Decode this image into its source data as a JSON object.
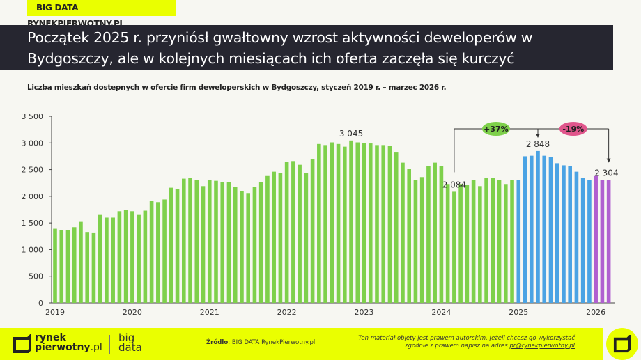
{
  "header": {
    "tag": "BIG DATA RYNEKPIERWOTNY.PL",
    "title_line1": "Początek 2025 r. przyniósł gwałtowny wzrost aktywności deweloperów w",
    "title_line2": "Bydgoszczy, ale w kolejnych miesiącach ich oferta zaczęła się kurczyć"
  },
  "chart_data": {
    "type": "bar",
    "title": "Liczba mieszkań dostępnych w ofercie firm deweloperskich w Bydgoszczy, styczeń 2019 r. – marzec 2026 r.",
    "xlabel": "",
    "ylabel": "",
    "ylim": [
      0,
      3500
    ],
    "yticks": [
      "0",
      "500",
      "1 000",
      "1 500",
      "2 000",
      "2 500",
      "3 000",
      "3 500"
    ],
    "ytick_values": [
      0,
      500,
      1000,
      1500,
      2000,
      2500,
      3000,
      3500
    ],
    "xtick_labels": [
      "2019",
      "2020",
      "2021",
      "2022",
      "2023",
      "2024",
      "2025",
      "2026"
    ],
    "start": "2019-01",
    "end": "2026-03",
    "grid": false,
    "values": [
      1390,
      1360,
      1370,
      1420,
      1520,
      1330,
      1320,
      1650,
      1600,
      1600,
      1720,
      1740,
      1720,
      1650,
      1730,
      1910,
      1890,
      1940,
      2160,
      2140,
      2330,
      2350,
      2310,
      2190,
      2300,
      2290,
      2260,
      2260,
      2180,
      2090,
      2060,
      2170,
      2260,
      2380,
      2460,
      2440,
      2640,
      2660,
      2590,
      2430,
      2690,
      2980,
      2960,
      3010,
      2980,
      2930,
      3045,
      3010,
      3000,
      2990,
      2960,
      2960,
      2940,
      2820,
      2630,
      2520,
      2300,
      2360,
      2560,
      2630,
      2560,
      2230,
      2084,
      2230,
      2210,
      2300,
      2190,
      2340,
      2350,
      2300,
      2230,
      2300,
      2300,
      2750,
      2760,
      2848,
      2760,
      2730,
      2620,
      2580,
      2570,
      2460,
      2350,
      2310,
      2380,
      2304,
      2304
    ],
    "colors": {
      "2019-2024": "#7ed04b",
      "2025": "#4aa3e4",
      "2026": "#b05fd0"
    },
    "data_labels": [
      {
        "month": "2022-11",
        "text": "3 045"
      },
      {
        "month": "2024-03",
        "text": "2 084"
      },
      {
        "month": "2025-04",
        "text": "2 848"
      },
      {
        "month": "2026-02",
        "text": "2 304"
      }
    ],
    "annotations": [
      {
        "text": "+37%",
        "from": "2024-03",
        "to": "2025-04",
        "color": "#7ed04b"
      },
      {
        "text": "-19%",
        "from": "2025-04",
        "to": "2026-03",
        "color": "#e0568c"
      }
    ]
  },
  "footer": {
    "brand_line1": "rynek",
    "brand_line2": "pierwotny",
    "brand_suffix": ".pl",
    "bigdata_line1": "big",
    "bigdata_line2": "data",
    "source_label": "Źródło",
    "source_value": ": BIG DATA RynekPierwotny.pl",
    "copyright_line1": "Ten materiał objęty jest prawem autorskim. Jeżeli chcesz go wykorzystać",
    "copyright_line2": "zgodnie z prawem napisz na adres ",
    "email": "pr@rynekpierwotny.pl"
  }
}
